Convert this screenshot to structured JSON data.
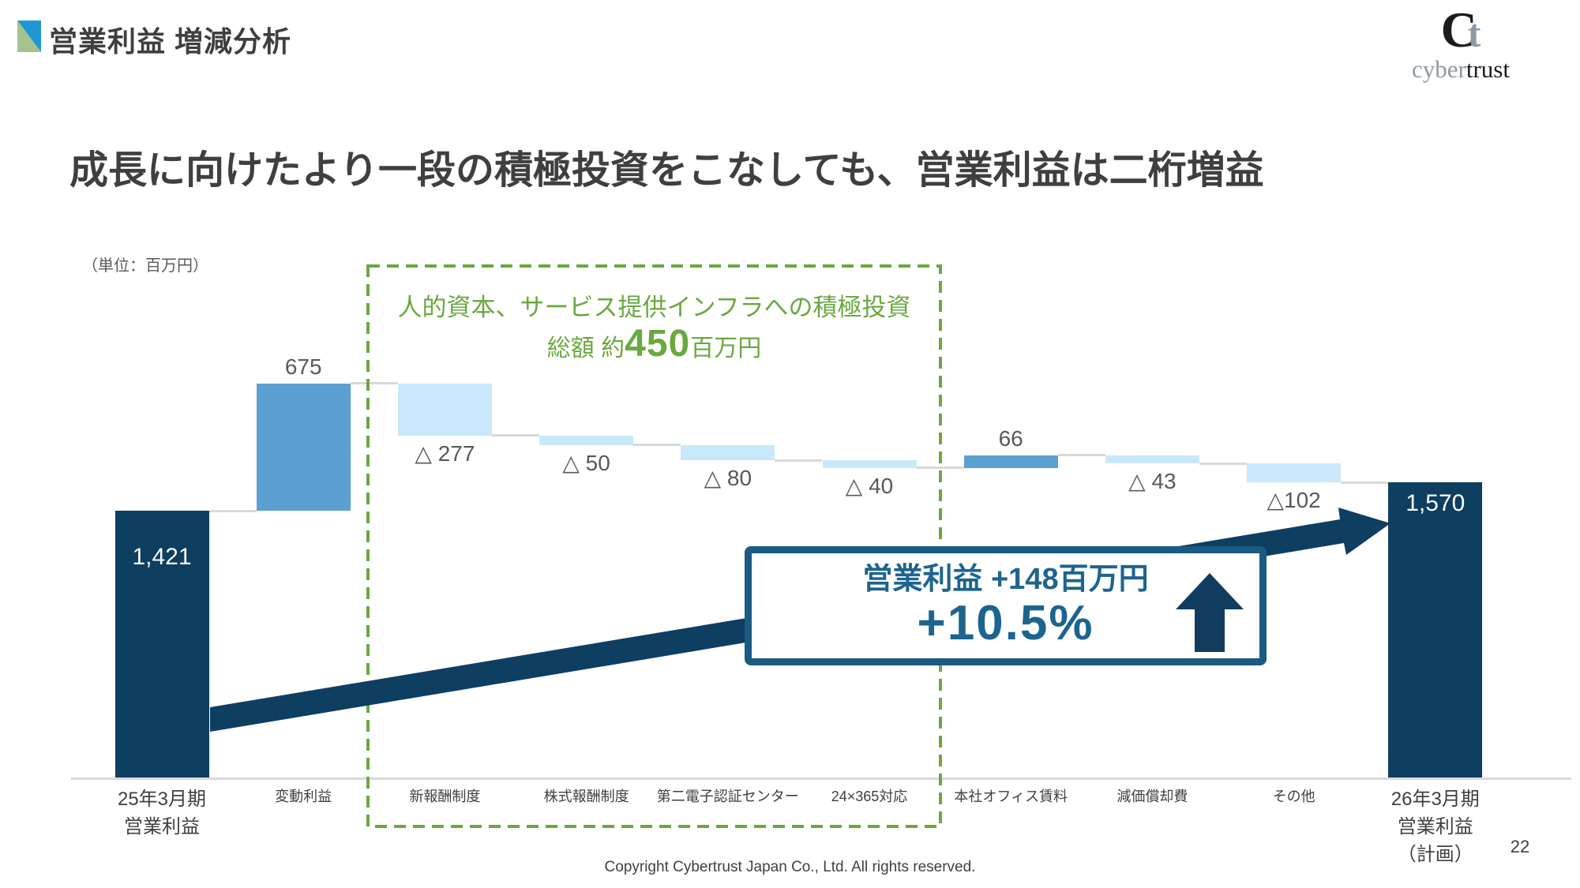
{
  "slide": {
    "title": "営業利益 増減分析",
    "headline": "成長に向けたより一段の積極投資をこなしても、営業利益は二桁増益",
    "unit_label": "（単位：百万円）",
    "footer": "Copyright Cybertrust Japan Co., Ltd. All rights reserved.",
    "page_number": "22"
  },
  "logo": {
    "mark_c": "C",
    "mark_t": "t",
    "word_gray": "cyber",
    "word_black": "trust"
  },
  "callout_investment": {
    "line1": "人的資本、サービス提供インフラへの積極投資",
    "line2_prefix": "総額 約",
    "line2_value": "450",
    "line2_suffix": "百万円"
  },
  "callout_profit": {
    "line1": "営業利益 +148百万円",
    "line2": "+10.5%"
  },
  "colors": {
    "navy": "#0e3e60",
    "medium_blue": "#5ba0d0",
    "light_blue": "#c9e8fb",
    "green": "#6aa840",
    "connector": "#d9d9d9",
    "box_border": "#1b5a82",
    "box_text": "#1d648f",
    "text_dark": "#3f3f3f",
    "text_gray": "#595959"
  },
  "chart_data": {
    "type": "bar",
    "subtype": "waterfall",
    "title": "営業利益 増減分析（25年3月期 → 26年3月期 計画）",
    "xlabel": "",
    "ylabel": "営業利益",
    "unit": "百万円",
    "legend": [],
    "grid": false,
    "categories": [
      "25年3月期\n営業利益",
      "変動利益",
      "新報酬制度",
      "株式報酬制度",
      "第二電子認証センター",
      "24×365対応",
      "本社オフィス賃料",
      "減価償却費",
      "その他",
      "26年3月期\n営業利益\n（計画）"
    ],
    "values": [
      1421,
      675,
      -277,
      -50,
      -80,
      -40,
      66,
      -43,
      -102,
      1570
    ],
    "kinds": [
      "total",
      "increase",
      "decrease",
      "decrease",
      "decrease",
      "decrease",
      "increase",
      "decrease",
      "decrease",
      "total"
    ],
    "bar_labels": [
      "1,421",
      "675",
      "△ 277",
      "△ 50",
      "△ 80",
      "△ 40",
      "66",
      "△ 43",
      "△102",
      "1,570"
    ],
    "annotations": {
      "investment_box_total": "約450百万円",
      "investment_box_columns": [
        "新報酬制度",
        "株式報酬制度",
        "第二電子認証センター",
        "24×365対応"
      ],
      "profit_change": "+148百万円",
      "profit_change_pct": "+10.5%"
    }
  }
}
